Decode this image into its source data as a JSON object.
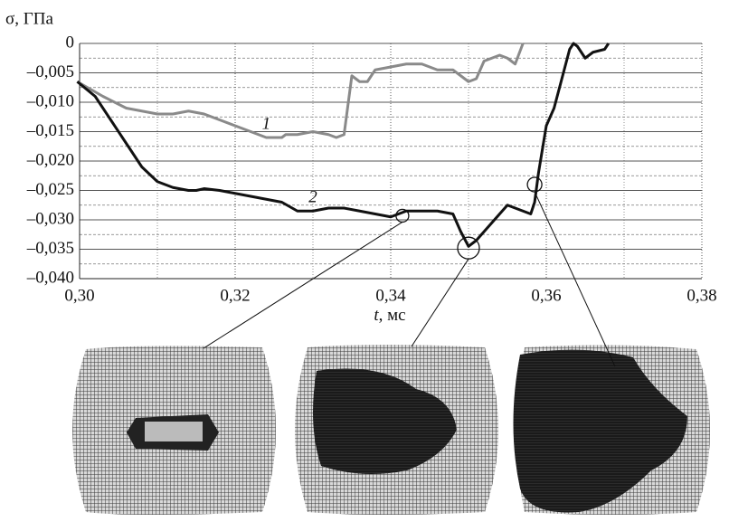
{
  "chart_data": {
    "type": "line",
    "y_label": "σ, ГПа",
    "x_label": [
      "t",
      ", мс"
    ],
    "xlim": [
      0.3,
      0.38
    ],
    "xticks": [
      {
        "value": 0.3,
        "label": "0,30"
      },
      {
        "value": 0.32,
        "label": "0,32"
      },
      {
        "value": 0.34,
        "label": "0,34"
      },
      {
        "value": 0.36,
        "label": "0,36"
      },
      {
        "value": 0.38,
        "label": "0,38"
      }
    ],
    "minor_xticks": [
      0.31,
      0.33,
      0.35,
      0.37
    ],
    "ylim": [
      -0.04,
      0
    ],
    "yticks": [
      {
        "value": -0.04,
        "label": "–0,040"
      },
      {
        "value": -0.035,
        "label": "–0,035"
      },
      {
        "value": -0.03,
        "label": "–0,030"
      },
      {
        "value": -0.025,
        "label": "–0,025"
      },
      {
        "value": -0.02,
        "label": "–0,020"
      },
      {
        "value": -0.015,
        "label": "–0,015"
      },
      {
        "value": -0.01,
        "label": "–0,010"
      },
      {
        "value": -0.005,
        "label": "–0,005"
      },
      0
    ],
    "minor_yticks": [
      -0.0375,
      -0.0325,
      -0.0275,
      -0.0225,
      -0.0175,
      -0.0125,
      -0.0075,
      -0.0025
    ],
    "grid": true,
    "series": [
      {
        "name": "1",
        "color": "#8a8a8a",
        "x": [
          0.2997,
          0.303,
          0.306,
          0.308,
          0.31,
          0.312,
          0.314,
          0.316,
          0.318,
          0.32,
          0.322,
          0.324,
          0.326,
          0.3265,
          0.328,
          0.33,
          0.332,
          0.333,
          0.334,
          0.335,
          0.336,
          0.337,
          0.338,
          0.34,
          0.342,
          0.344,
          0.346,
          0.348,
          0.349,
          0.35,
          0.351,
          0.352,
          0.354,
          0.355,
          0.356,
          0.357
        ],
        "values": [
          -0.0065,
          -0.009,
          -0.011,
          -0.0115,
          -0.012,
          -0.012,
          -0.0115,
          -0.012,
          -0.013,
          -0.014,
          -0.015,
          -0.016,
          -0.016,
          -0.0155,
          -0.0155,
          -0.015,
          -0.0155,
          -0.016,
          -0.0155,
          -0.0055,
          -0.0065,
          -0.0065,
          -0.0045,
          -0.004,
          -0.0035,
          -0.0035,
          -0.0045,
          -0.0045,
          -0.0055,
          -0.0065,
          -0.006,
          -0.003,
          -0.002,
          -0.0025,
          -0.0035,
          0
        ]
      },
      {
        "name": "2",
        "color": "#111111",
        "x": [
          0.2997,
          0.302,
          0.304,
          0.306,
          0.308,
          0.31,
          0.312,
          0.314,
          0.315,
          0.316,
          0.318,
          0.32,
          0.322,
          0.324,
          0.326,
          0.328,
          0.33,
          0.332,
          0.334,
          0.336,
          0.338,
          0.34,
          0.342,
          0.344,
          0.346,
          0.348,
          0.349,
          0.35,
          0.351,
          0.352,
          0.353,
          0.354,
          0.355,
          0.356,
          0.357,
          0.358,
          0.3585,
          0.359,
          0.36,
          0.361,
          0.362,
          0.363,
          0.3635,
          0.364,
          0.365,
          0.366,
          0.3675,
          0.368
        ],
        "values": [
          -0.0065,
          -0.009,
          -0.013,
          -0.017,
          -0.021,
          -0.0235,
          -0.0245,
          -0.025,
          -0.025,
          -0.0247,
          -0.025,
          -0.0255,
          -0.026,
          -0.0265,
          -0.027,
          -0.0285,
          -0.0285,
          -0.028,
          -0.028,
          -0.0285,
          -0.029,
          -0.0295,
          -0.0285,
          -0.0285,
          -0.0285,
          -0.029,
          -0.032,
          -0.0345,
          -0.0335,
          -0.032,
          -0.0305,
          -0.029,
          -0.0275,
          -0.028,
          -0.0285,
          -0.029,
          -0.027,
          -0.022,
          -0.014,
          -0.011,
          -0.006,
          -0.001,
          0,
          -0.0005,
          -0.0025,
          -0.0015,
          -0.001,
          0
        ]
      }
    ],
    "markers": [
      {
        "x": 0.3415,
        "y": -0.0293
      },
      {
        "x": 0.35,
        "y": -0.0348
      },
      {
        "x": 0.3585,
        "y": -0.024
      }
    ]
  }
}
